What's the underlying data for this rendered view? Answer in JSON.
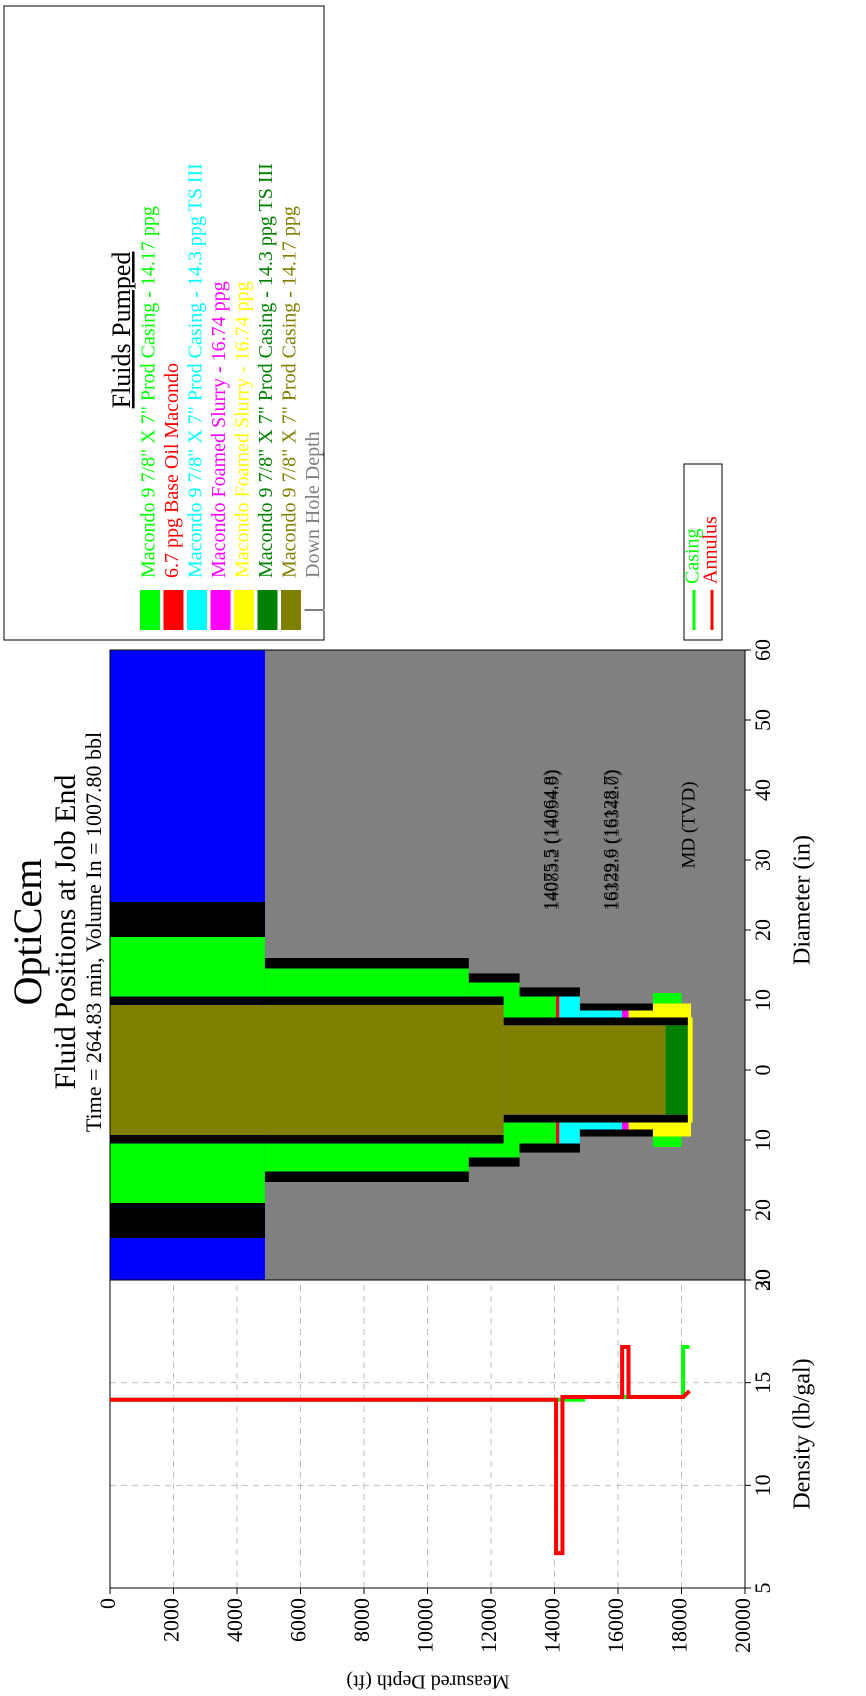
{
  "chart_data": [
    {
      "type": "line",
      "xlabel": "Density (lb/gal)",
      "ylabel": "Measured Depth (ft)",
      "xlim": [
        5,
        20
      ],
      "xticks": [
        5,
        10,
        15,
        20
      ],
      "ylim": [
        0,
        20000
      ],
      "yticks": [
        0,
        2000,
        4000,
        6000,
        8000,
        10000,
        12000,
        14000,
        16000,
        18000,
        20000
      ],
      "y_inverted": true,
      "grid": true,
      "series": [
        {
          "name": "Casing",
          "color": "#00ff00",
          "x": [
            14.17,
            14.17,
            14.3,
            14.3,
            16.74,
            16.74
          ],
          "y": [
            0,
            14900,
            14900,
            18050,
            18050,
            18250
          ]
        },
        {
          "name": "Annulus",
          "color": "#ff0000",
          "x": [
            14.17,
            14.17,
            6.7,
            6.7,
            14.3,
            14.3,
            16.74,
            16.74,
            14.3,
            14.3,
            14.6
          ],
          "y": [
            0,
            14050,
            14050,
            14250,
            14250,
            16130,
            16130,
            16330,
            16330,
            18050,
            18250
          ]
        }
      ]
    },
    {
      "type": "wellbore",
      "title": "OptiCem",
      "subtitle": "Fluid Positions at Job End",
      "caption": "Time = 264.83 min, Volume In = 1007.80 bbl",
      "xlabel": "Diameter (in)",
      "xlim": [
        -30,
        60
      ],
      "xticks": [
        {
          "value": -30,
          "label": "30"
        },
        {
          "value": -20,
          "label": "20"
        },
        {
          "value": -10,
          "label": "10"
        },
        0,
        10,
        20,
        30,
        40,
        50,
        60
      ],
      "ylim": [
        0,
        20000
      ],
      "water_depth": 4880,
      "water_color": "#0000ff",
      "formation_color": "#808080",
      "sections": [
        {
          "top": 0,
          "bottom": 4880,
          "inner": 10.5,
          "outer": 19,
          "color": "#00ff00"
        },
        {
          "top": 0,
          "bottom": 4880,
          "inner": 19,
          "outer": 24,
          "color": "#000000"
        },
        {
          "top": 0,
          "bottom": 12400,
          "inner": 0,
          "outer": 9.3,
          "color": "#808000"
        },
        {
          "top": 0,
          "bottom": 12400,
          "inner": 9.3,
          "outer": 10.5,
          "color": "#000000"
        },
        {
          "top": 4880,
          "bottom": 11300,
          "inner": 10.5,
          "outer": 14.5,
          "color": "#00ff00"
        },
        {
          "top": 4880,
          "bottom": 11300,
          "inner": 14.5,
          "outer": 16,
          "color": "#000000"
        },
        {
          "top": 11300,
          "bottom": 12900,
          "inner": 10.5,
          "outer": 12.5,
          "color": "#00ff00"
        },
        {
          "top": 11300,
          "bottom": 12900,
          "inner": 12.5,
          "outer": 13.8,
          "color": "#000000"
        },
        {
          "top": 12400,
          "bottom": 14050,
          "inner": 7.5,
          "outer": 10.5,
          "color": "#00ff00"
        },
        {
          "top": 12900,
          "bottom": 14800,
          "inner": 10.5,
          "outer": 11.8,
          "color": "#000000"
        },
        {
          "top": 14050,
          "bottom": 14150,
          "inner": 7.5,
          "outer": 10.5,
          "color": "#ff0000"
        },
        {
          "top": 14150,
          "bottom": 14800,
          "inner": 7.5,
          "outer": 10.5,
          "color": "#00ffff"
        },
        {
          "top": 14800,
          "bottom": 16130,
          "inner": 7.5,
          "outer": 8.5,
          "color": "#00ffff"
        },
        {
          "top": 14800,
          "bottom": 17100,
          "inner": 8.5,
          "outer": 9.5,
          "color": "#000000"
        },
        {
          "top": 16130,
          "bottom": 16330,
          "inner": 7.5,
          "outer": 8.5,
          "color": "#ff00ff"
        },
        {
          "top": 16330,
          "bottom": 17100,
          "inner": 7.5,
          "outer": 8.5,
          "color": "#ffff00"
        },
        {
          "top": 17100,
          "bottom": 18300,
          "inner": 7.5,
          "outer": 9.5,
          "color": "#ffff00"
        },
        {
          "top": 17100,
          "bottom": 18000,
          "inner": 9.5,
          "outer": 11,
          "color": "#00ff00"
        },
        {
          "top": 12400,
          "bottom": 17500,
          "inner": 0,
          "outer": 6.4,
          "color": "#808000"
        },
        {
          "top": 17500,
          "bottom": 18200,
          "inner": 0,
          "outer": 6.4,
          "color": "#008000"
        },
        {
          "top": 12400,
          "bottom": 18300,
          "inner": 6.4,
          "outer": 7.5,
          "color": "#000000"
        },
        {
          "top": 18200,
          "bottom": 18350,
          "inner": 0,
          "outer": 7.5,
          "color": "#ffff00"
        }
      ],
      "annotations": [
        "14075.5 (14064.8)",
        "14083.2 (14094.9)",
        "16129.6 (16128.7)",
        "16332.9 (16342.0)",
        "MD (TVD)"
      ],
      "legend_title": "Fluids Pumped",
      "fluids": [
        {
          "name": "Macondo 9 7/8\" X 7\" Prod Casing - 14.17 ppg",
          "color": "#00ff00"
        },
        {
          "name": "6.7 ppg Base Oil Macondo",
          "color": "#ff0000"
        },
        {
          "name": "Macondo 9 7/8\" X 7\" Prod Casing - 14.3 ppg TS III",
          "color": "#00ffff"
        },
        {
          "name": "Macondo Foamed Slurry - 16.74 ppg",
          "color": "#ff00ff"
        },
        {
          "name": "Macondo Foamed Slurry - 16.74 ppg",
          "color": "#ffff00"
        },
        {
          "name": "Macondo 9 7/8\" X 7\" Prod Casing - 14.3 ppg TS III",
          "color": "#008000"
        },
        {
          "name": "Macondo 9 7/8\" X 7\" Prod Casing - 14.17 ppg",
          "color": "#808000"
        },
        {
          "name": "Down Hole Depth",
          "color": "#808080",
          "swatch": "line"
        }
      ]
    }
  ]
}
